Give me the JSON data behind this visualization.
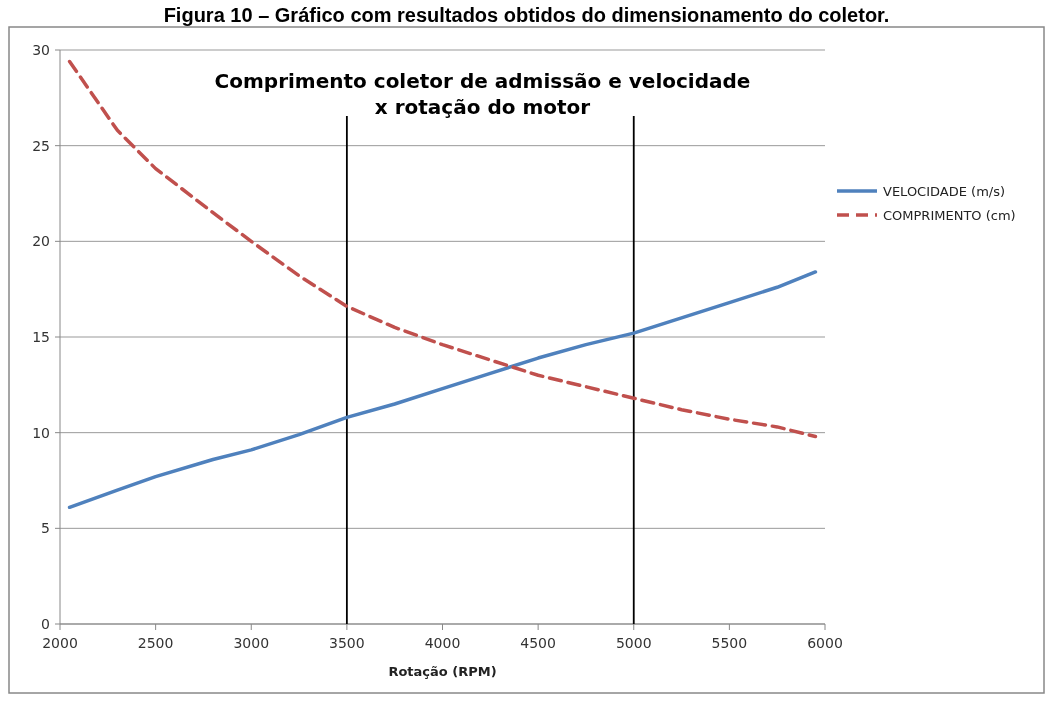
{
  "chart_data": {
    "type": "line",
    "title": "Comprimento coletor de admissão e velocidade\nx rotação do motor",
    "xlabel": "Rotação (RPM)",
    "annotations": [
      "Figura 10 – Gráfico com resultados obtidos do dimensionamento do coletor."
    ],
    "x": [
      2050,
      2300,
      2500,
      2800,
      3000,
      3250,
      3500,
      3750,
      4000,
      4250,
      4500,
      4750,
      5000,
      5250,
      5500,
      5750,
      5950
    ],
    "series": [
      {
        "name": "VELOCIDADE (m/s)",
        "color": "#4f81bd",
        "line_style": "solid",
        "values": [
          6.1,
          7.0,
          7.7,
          8.6,
          9.1,
          9.9,
          10.8,
          11.5,
          12.3,
          13.1,
          13.9,
          14.6,
          15.2,
          16.0,
          16.8,
          17.6,
          18.4
        ]
      },
      {
        "name": "COMPRIMENTO (cm)",
        "color": "#c0504d",
        "line_style": "dashed",
        "values": [
          29.4,
          25.8,
          23.8,
          21.5,
          20.0,
          18.2,
          16.6,
          15.5,
          14.6,
          13.8,
          13.0,
          12.4,
          11.8,
          11.2,
          10.7,
          10.3,
          9.8
        ]
      }
    ],
    "xlim": [
      2000,
      6000
    ],
    "xticks": [
      2000,
      2500,
      3000,
      3500,
      4000,
      4500,
      5000,
      5500,
      6000
    ],
    "ylim": [
      0,
      30
    ],
    "yticks": [
      0,
      5,
      10,
      15,
      20,
      25,
      30
    ],
    "grid": "y",
    "legend": "right",
    "marker": "none",
    "ref_lines": [
      {
        "axis": "x",
        "value": 3500,
        "color": "#000000"
      },
      {
        "axis": "x",
        "value": 5000,
        "color": "#000000"
      }
    ]
  }
}
